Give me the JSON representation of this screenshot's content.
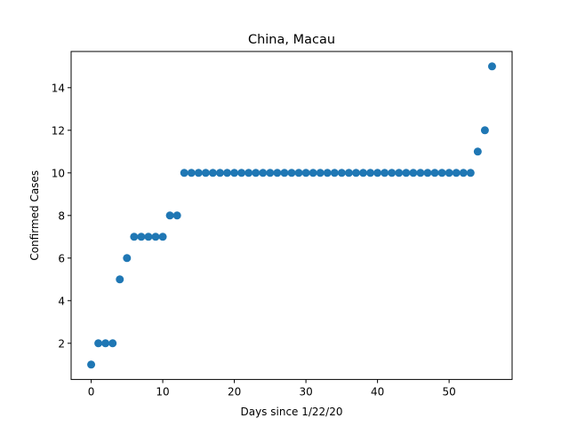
{
  "chart_data": {
    "type": "scatter",
    "title": "China, Macau",
    "xlabel": "Days since 1/22/20",
    "ylabel": "Confirmed Cases",
    "xlim": [
      -2.8,
      58.8
    ],
    "ylim": [
      0.3,
      15.7
    ],
    "xticks": [
      0,
      10,
      20,
      30,
      40,
      50
    ],
    "yticks": [
      2,
      4,
      6,
      8,
      10,
      12,
      14
    ],
    "grid": false,
    "marker_color": "#1f77b4",
    "series": [
      {
        "x": [
          0,
          1,
          2,
          3,
          4,
          5,
          6,
          7,
          8,
          9,
          10,
          11,
          12,
          13,
          14,
          15,
          16,
          17,
          18,
          19,
          20,
          21,
          22,
          23,
          24,
          25,
          26,
          27,
          28,
          29,
          30,
          31,
          32,
          33,
          34,
          35,
          36,
          37,
          38,
          39,
          40,
          41,
          42,
          43,
          44,
          45,
          46,
          47,
          48,
          49,
          50,
          51,
          52,
          53,
          54,
          55,
          56
        ],
        "y": [
          1,
          2,
          2,
          2,
          5,
          6,
          7,
          7,
          7,
          7,
          7,
          8,
          8,
          10,
          10,
          10,
          10,
          10,
          10,
          10,
          10,
          10,
          10,
          10,
          10,
          10,
          10,
          10,
          10,
          10,
          10,
          10,
          10,
          10,
          10,
          10,
          10,
          10,
          10,
          10,
          10,
          10,
          10,
          10,
          10,
          10,
          10,
          10,
          10,
          10,
          10,
          10,
          10,
          10,
          11,
          12,
          15
        ]
      }
    ]
  }
}
